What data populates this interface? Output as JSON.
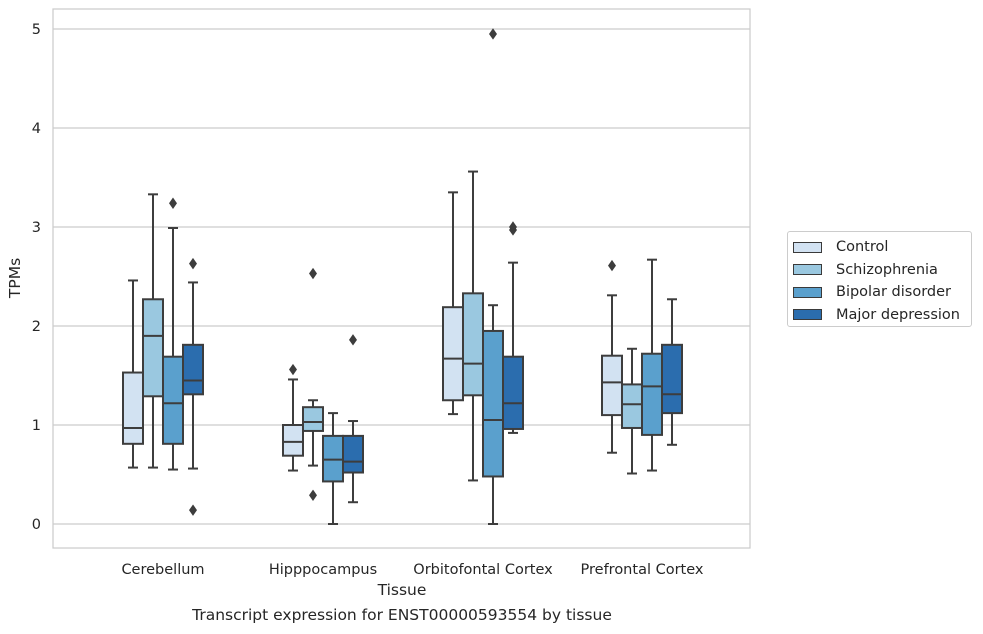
{
  "chart_data": {
    "type": "box",
    "title": "",
    "xlabel": "Tissue",
    "ylabel": "TPMs",
    "ylim": [
      -0.25,
      5.2
    ],
    "yticks": [
      "0",
      "1",
      "2",
      "3",
      "4",
      "5"
    ],
    "grid": true,
    "legend_position": "right",
    "categories": [
      "Cerebellum",
      "Hipppocampus",
      "Orbitofontal Cortex",
      "Prefrontal Cortex"
    ],
    "series": [
      {
        "name": "Control",
        "color": "#d2e2f2",
        "boxes": [
          {
            "whislo": 0.57,
            "q1": 0.81,
            "med": 0.97,
            "q3": 1.53,
            "whishi": 2.46,
            "fliers": []
          },
          {
            "whislo": 0.54,
            "q1": 0.69,
            "med": 0.83,
            "q3": 1.0,
            "whishi": 1.46,
            "fliers": [
              1.56
            ]
          },
          {
            "whislo": 1.11,
            "q1": 1.25,
            "med": 1.67,
            "q3": 2.19,
            "whishi": 3.35,
            "fliers": []
          },
          {
            "whislo": 0.72,
            "q1": 1.1,
            "med": 1.43,
            "q3": 1.7,
            "whishi": 2.31,
            "fliers": [
              2.61
            ]
          }
        ]
      },
      {
        "name": "Schizophrenia",
        "color": "#9ac8e0",
        "boxes": [
          {
            "whislo": 0.57,
            "q1": 1.29,
            "med": 1.9,
            "q3": 2.27,
            "whishi": 3.33,
            "fliers": []
          },
          {
            "whislo": 0.59,
            "q1": 0.94,
            "med": 1.03,
            "q3": 1.18,
            "whishi": 1.25,
            "fliers": [
              2.53,
              0.29
            ]
          },
          {
            "whislo": 0.44,
            "q1": 1.3,
            "med": 1.62,
            "q3": 2.33,
            "whishi": 3.56,
            "fliers": []
          },
          {
            "whislo": 0.51,
            "q1": 0.97,
            "med": 1.21,
            "q3": 1.41,
            "whishi": 1.77,
            "fliers": []
          }
        ]
      },
      {
        "name": "Bipolar disorder",
        "color": "#5aa0cd",
        "boxes": [
          {
            "whislo": 0.55,
            "q1": 0.81,
            "med": 1.22,
            "q3": 1.69,
            "whishi": 2.99,
            "fliers": [
              3.24
            ]
          },
          {
            "whislo": 0.0,
            "q1": 0.43,
            "med": 0.65,
            "q3": 0.89,
            "whishi": 1.12,
            "fliers": []
          },
          {
            "whislo": 0.0,
            "q1": 0.48,
            "med": 1.05,
            "q3": 1.95,
            "whishi": 2.21,
            "fliers": [
              4.95
            ]
          },
          {
            "whislo": 0.54,
            "q1": 0.9,
            "med": 1.39,
            "q3": 1.72,
            "whishi": 2.67,
            "fliers": []
          }
        ]
      },
      {
        "name": "Major depression",
        "color": "#2b6dae",
        "boxes": [
          {
            "whislo": 0.56,
            "q1": 1.31,
            "med": 1.45,
            "q3": 1.81,
            "whishi": 2.44,
            "fliers": [
              2.63,
              0.14
            ]
          },
          {
            "whislo": 0.22,
            "q1": 0.52,
            "med": 0.63,
            "q3": 0.89,
            "whishi": 1.04,
            "fliers": [
              1.86
            ]
          },
          {
            "whislo": 0.92,
            "q1": 0.96,
            "med": 1.22,
            "q3": 1.69,
            "whishi": 2.64,
            "fliers": [
              2.97,
              3.0
            ]
          },
          {
            "whislo": 0.8,
            "q1": 1.12,
            "med": 1.31,
            "q3": 1.81,
            "whishi": 2.27,
            "fliers": []
          }
        ]
      }
    ]
  },
  "caption": "Transcript expression for ENST00000593554 by tissue"
}
